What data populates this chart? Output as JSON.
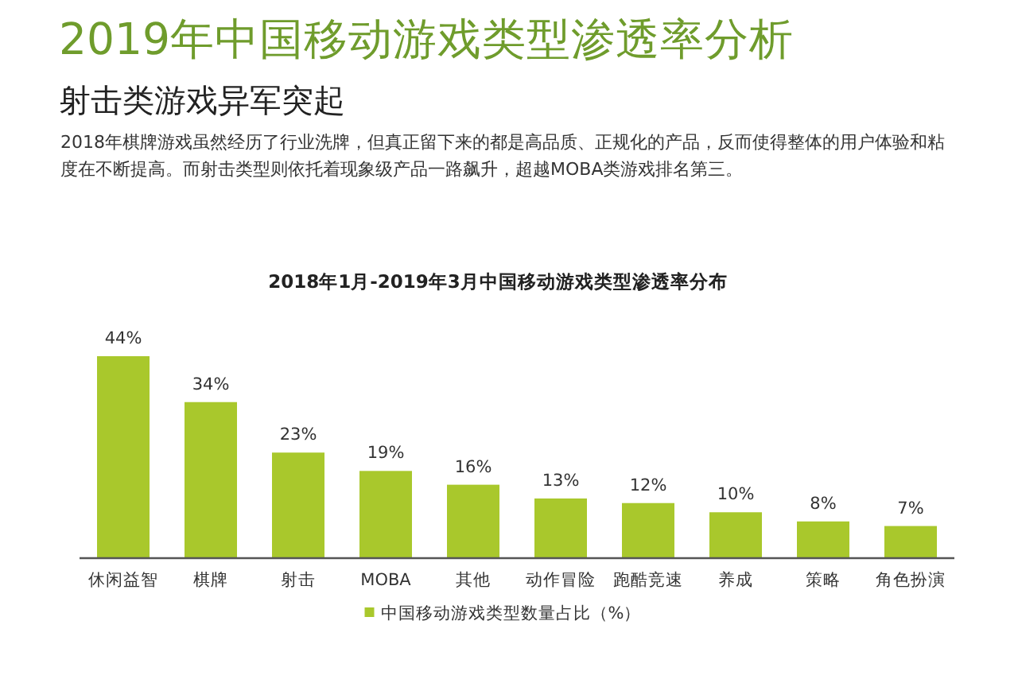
{
  "chart_data": {
    "type": "bar",
    "title": "2019年中国移动游戏类型渗透率分析",
    "subtitle": "射击类游戏异军突起",
    "annotations": [
      "2018年棋牌游戏虽然经历了行业洗牌，但真正留下来的都是高品质、正规化的产品，反而使得整体的用户体验和粘度在不断提高。而射击类型则依托着现象级产品一路飙升，超越MOBA类游戏排名第三。",
      "2018年1月-2019年3月中国移动游戏类型渗透率分布"
    ],
    "categories": [
      "休闲益智",
      "棋牌",
      "射击",
      "MOBA",
      "其他",
      "动作冒险",
      "跑酷竞速",
      "养成",
      "策略",
      "角色扮演"
    ],
    "series": [
      {
        "name": "中国移动游戏类型数量占比（%）",
        "color": "#a9c82c",
        "values": [
          44,
          34,
          23,
          19,
          16,
          13,
          12,
          10,
          8,
          7
        ],
        "value_labels": [
          "44%",
          "34%",
          "23%",
          "19%",
          "16%",
          "13%",
          "12%",
          "10%",
          "8%",
          "7%"
        ]
      }
    ],
    "legend": "bottom"
  }
}
